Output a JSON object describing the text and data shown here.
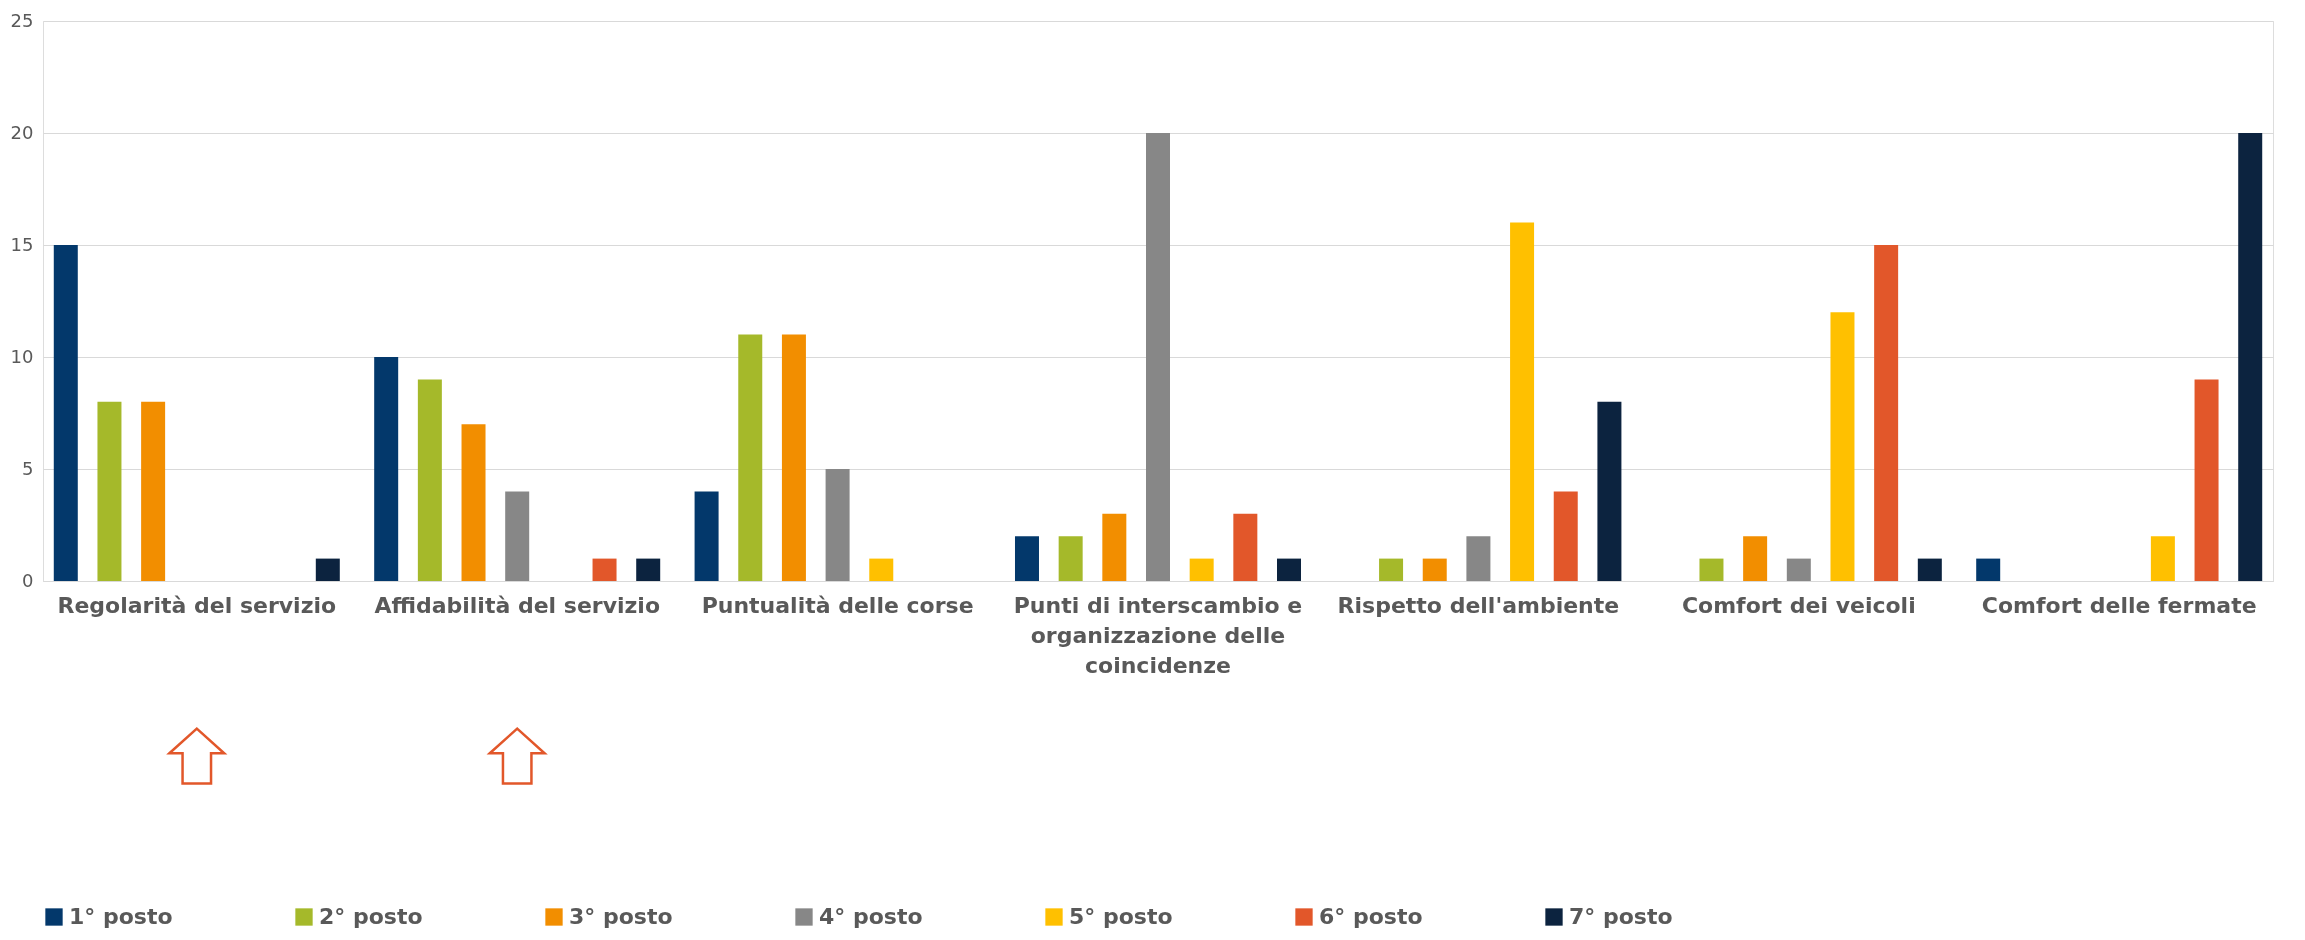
{
  "chart_data": {
    "type": "bar",
    "categories": [
      "Regolarità del servizio",
      "Affidabilità del servizio",
      "Puntualità delle corse",
      "Punti di interscambio e organizzazione delle coincidenze",
      "Rispetto dell'ambiente",
      "Comfort dei veicoli",
      "Comfort delle fermate"
    ],
    "series": [
      {
        "name": "1° posto",
        "color": "#03386b",
        "values": [
          15,
          10,
          4,
          2,
          0,
          0,
          1
        ]
      },
      {
        "name": "2° posto",
        "color": "#a5b92a",
        "values": [
          8,
          9,
          11,
          2,
          1,
          1,
          0
        ]
      },
      {
        "name": "3° posto",
        "color": "#f28e00",
        "values": [
          8,
          7,
          11,
          3,
          1,
          2,
          0
        ]
      },
      {
        "name": "4° posto",
        "color": "#878787",
        "values": [
          0,
          4,
          5,
          20,
          2,
          1,
          0
        ]
      },
      {
        "name": "5° posto",
        "color": "#ffc000",
        "values": [
          0,
          0,
          1,
          1,
          16,
          12,
          2
        ]
      },
      {
        "name": "6° posto",
        "color": "#e2572a",
        "values": [
          0,
          1,
          0,
          3,
          4,
          15,
          9
        ]
      },
      {
        "name": "7° posto",
        "color": "#0c233f",
        "values": [
          1,
          1,
          0,
          1,
          8,
          1,
          20
        ]
      }
    ],
    "ylim": [
      0,
      25
    ],
    "yticks": [
      0,
      5,
      10,
      15,
      20,
      25
    ],
    "grid": "y",
    "legend": "bottom"
  }
}
